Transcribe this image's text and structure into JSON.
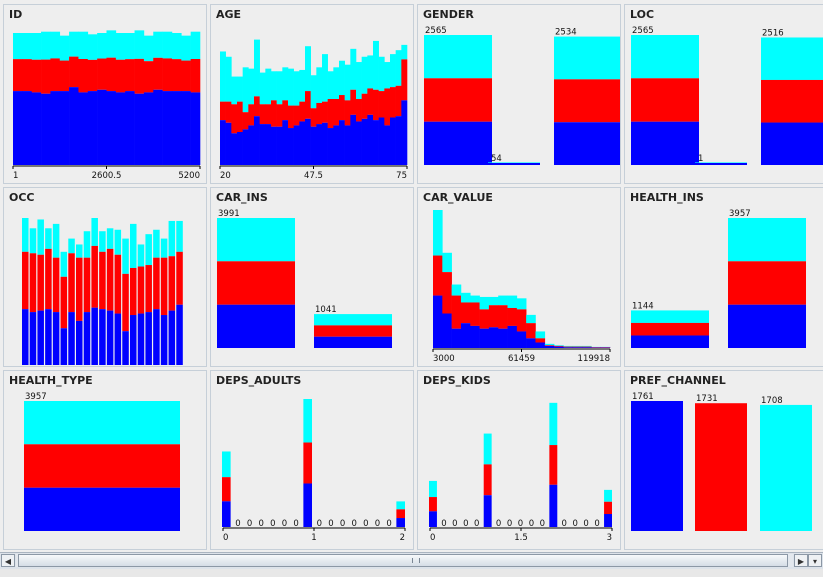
{
  "colors": {
    "blue": "#0000ff",
    "red": "#ff0000",
    "cyan": "#00ffff"
  },
  "chart_data": [
    {
      "id": "ID",
      "title": "ID",
      "type": "stacked-bar",
      "note": "per-bin proportions",
      "ticks": [
        "1",
        "2600.5",
        "5200"
      ],
      "bins": [
        [
          0.56,
          0.44
        ],
        [
          0.56,
          0.44
        ],
        [
          0.55,
          0.45
        ],
        [
          0.54,
          0.47
        ],
        [
          0.56,
          0.45
        ],
        [
          0.56,
          0.42
        ],
        [
          0.59,
          0.42
        ],
        [
          0.55,
          0.46
        ],
        [
          0.56,
          0.43
        ],
        [
          0.57,
          0.43
        ],
        [
          0.56,
          0.46
        ],
        [
          0.55,
          0.45
        ],
        [
          0.56,
          0.44
        ],
        [
          0.54,
          0.48
        ],
        [
          0.55,
          0.43
        ],
        [
          0.57,
          0.44
        ],
        [
          0.56,
          0.45
        ],
        [
          0.56,
          0.44
        ],
        [
          0.56,
          0.42
        ],
        [
          0.55,
          0.46
        ]
      ]
    },
    {
      "id": "AGE",
      "title": "AGE",
      "type": "stacked-bar",
      "ticks": [
        "20",
        "47.5",
        "75"
      ],
      "bins": [
        [
          0.34,
          0.48,
          0.86
        ],
        [
          0.32,
          0.48,
          0.82
        ],
        [
          0.24,
          0.46,
          0.67
        ],
        [
          0.25,
          0.48,
          0.67
        ],
        [
          0.27,
          0.4,
          0.74
        ],
        [
          0.3,
          0.46,
          0.73
        ],
        [
          0.37,
          0.52,
          0.95
        ],
        [
          0.31,
          0.46,
          0.7
        ],
        [
          0.31,
          0.46,
          0.73
        ],
        [
          0.29,
          0.49,
          0.71
        ],
        [
          0.29,
          0.46,
          0.71
        ],
        [
          0.34,
          0.49,
          0.74
        ],
        [
          0.28,
          0.45,
          0.73
        ],
        [
          0.3,
          0.45,
          0.71
        ],
        [
          0.33,
          0.48,
          0.72
        ],
        [
          0.35,
          0.56,
          0.9
        ],
        [
          0.29,
          0.43,
          0.68
        ],
        [
          0.31,
          0.47,
          0.74
        ],
        [
          0.32,
          0.48,
          0.84
        ],
        [
          0.28,
          0.5,
          0.71
        ],
        [
          0.3,
          0.5,
          0.74
        ],
        [
          0.34,
          0.53,
          0.79
        ],
        [
          0.3,
          0.49,
          0.76
        ],
        [
          0.38,
          0.57,
          0.88
        ],
        [
          0.33,
          0.5,
          0.78
        ],
        [
          0.35,
          0.54,
          0.82
        ],
        [
          0.38,
          0.58,
          0.83
        ],
        [
          0.34,
          0.57,
          0.94
        ],
        [
          0.36,
          0.56,
          0.82
        ],
        [
          0.3,
          0.58,
          0.78
        ],
        [
          0.36,
          0.59,
          0.84
        ],
        [
          0.37,
          0.6,
          0.87
        ],
        [
          0.49,
          0.8,
          0.91
        ]
      ]
    },
    {
      "id": "GENDER",
      "title": "GENDER",
      "type": "stacked-bar",
      "max": 2565,
      "bars": [
        {
          "value": 2565,
          "label": "2565"
        },
        {
          "value": 54,
          "label": "54"
        },
        {
          "value": 2534,
          "label": "2534"
        }
      ]
    },
    {
      "id": "LOC",
      "title": "LOC",
      "type": "stacked-bar",
      "max": 2565,
      "bars": [
        {
          "value": 2565,
          "label": "2565"
        },
        {
          "value": 1,
          "label": "1"
        },
        {
          "value": 2516,
          "label": "2516"
        }
      ]
    },
    {
      "id": "OCC",
      "title": "OCC",
      "type": "stacked-bar",
      "bins": [
        [
          0.38,
          0.77,
          1.0
        ],
        [
          0.36,
          0.76,
          0.93
        ],
        [
          0.37,
          0.75,
          0.99
        ],
        [
          0.38,
          0.79,
          0.93
        ],
        [
          0.36,
          0.73,
          0.96
        ],
        [
          0.25,
          0.6,
          0.77
        ],
        [
          0.36,
          0.76,
          0.86
        ],
        [
          0.3,
          0.73,
          0.82
        ],
        [
          0.36,
          0.73,
          0.91
        ],
        [
          0.39,
          0.81,
          1.0
        ],
        [
          0.38,
          0.77,
          0.91
        ],
        [
          0.37,
          0.79,
          0.93
        ],
        [
          0.35,
          0.75,
          0.92
        ],
        [
          0.23,
          0.62,
          0.86
        ],
        [
          0.34,
          0.66,
          0.96
        ],
        [
          0.35,
          0.67,
          0.82
        ],
        [
          0.36,
          0.68,
          0.89
        ],
        [
          0.38,
          0.73,
          0.92
        ],
        [
          0.34,
          0.73,
          0.86
        ],
        [
          0.37,
          0.74,
          0.98
        ],
        [
          0.41,
          0.77,
          0.98
        ]
      ]
    },
    {
      "id": "CAR_INS",
      "title": "CAR_INS",
      "type": "stacked-bar",
      "max": 3991,
      "bars": [
        {
          "value": 3991,
          "label": "3991"
        },
        {
          "value": 1041,
          "label": "1041"
        }
      ]
    },
    {
      "id": "CAR_VALUE",
      "title": "CAR_VALUE",
      "type": "stacked-bar",
      "ticks": [
        "3000",
        "61459",
        "119918"
      ],
      "bins": [
        [
          0.38,
          0.67,
          1.0
        ],
        [
          0.25,
          0.55,
          0.69
        ],
        [
          0.14,
          0.38,
          0.46
        ],
        [
          0.18,
          0.33,
          0.4
        ],
        [
          0.16,
          0.33,
          0.38
        ],
        [
          0.14,
          0.28,
          0.37
        ],
        [
          0.15,
          0.31,
          0.37
        ],
        [
          0.14,
          0.31,
          0.38
        ],
        [
          0.16,
          0.29,
          0.38
        ],
        [
          0.12,
          0.28,
          0.36
        ],
        [
          0.07,
          0.18,
          0.24
        ],
        [
          0.04,
          0.07,
          0.12
        ],
        [
          0.015,
          0.02,
          0.03
        ],
        [
          0.01,
          0.015,
          0.02
        ],
        [
          0.005,
          0.01,
          0.015
        ],
        [
          0.005,
          0.01,
          0.015
        ],
        [
          0.005,
          0.01,
          0.015
        ],
        [
          0.003,
          0.006,
          0.008
        ],
        [
          0.003,
          0.006,
          0.008
        ]
      ]
    },
    {
      "id": "HEALTH_INS",
      "title": "HEALTH_INS",
      "type": "stacked-bar",
      "max": 3957,
      "bars": [
        {
          "value": 1144,
          "label": "1144"
        },
        {
          "value": 3957,
          "label": "3957"
        }
      ]
    },
    {
      "id": "HEALTH_TYPE",
      "title": "HEALTH_TYPE",
      "type": "stacked-bar",
      "max": 3957,
      "bars": [
        {
          "value": 3957,
          "label": "3957"
        }
      ]
    },
    {
      "id": "DEPS_ADULTS",
      "title": "DEPS_ADULTS",
      "type": "stacked-bar",
      "ticks": [
        "0",
        "1",
        "2"
      ],
      "zero_label": "0",
      "bins": [
        [
          0.34,
          0.66,
          1.0
        ],
        0,
        0,
        0,
        0,
        0,
        0,
        [
          0.34,
          0.66,
          1.0
        ],
        0,
        0,
        0,
        0,
        0,
        0,
        0,
        [
          0.35,
          0.69,
          1.0
        ]
      ],
      "heights": [
        0.59,
        0,
        0,
        0,
        0,
        0,
        0,
        1.0,
        0,
        0,
        0,
        0,
        0,
        0,
        0,
        0.2
      ]
    },
    {
      "id": "DEPS_KIDS",
      "title": "DEPS_KIDS",
      "type": "stacked-bar",
      "ticks": [
        "0",
        "1.5",
        "3"
      ],
      "zero_label": "0",
      "bins": [
        [
          0.34,
          0.65,
          1.0
        ],
        0,
        0,
        0,
        0,
        [
          0.34,
          0.67,
          1.0
        ],
        0,
        0,
        0,
        0,
        0,
        [
          0.34,
          0.66,
          1.0
        ],
        0,
        0,
        0,
        0,
        [
          0.35,
          0.68,
          1.0
        ]
      ],
      "heights": [
        0.36,
        0,
        0,
        0,
        0,
        0.73,
        0,
        0,
        0,
        0,
        0,
        0.97,
        0,
        0,
        0,
        0,
        0.29
      ]
    },
    {
      "id": "PREF_CHANNEL",
      "title": "PREF_CHANNEL",
      "type": "bar",
      "max": 1761,
      "bars": [
        {
          "value": 1761,
          "label": "1761",
          "color": "#0000ff"
        },
        {
          "value": 1731,
          "label": "1731",
          "color": "#ff0000"
        },
        {
          "value": 1708,
          "label": "1708",
          "color": "#00ffff"
        }
      ]
    }
  ],
  "scrollbar": {
    "left_arrow": "◀",
    "right_arrow": "▶",
    "menu_arrow": "▾"
  }
}
